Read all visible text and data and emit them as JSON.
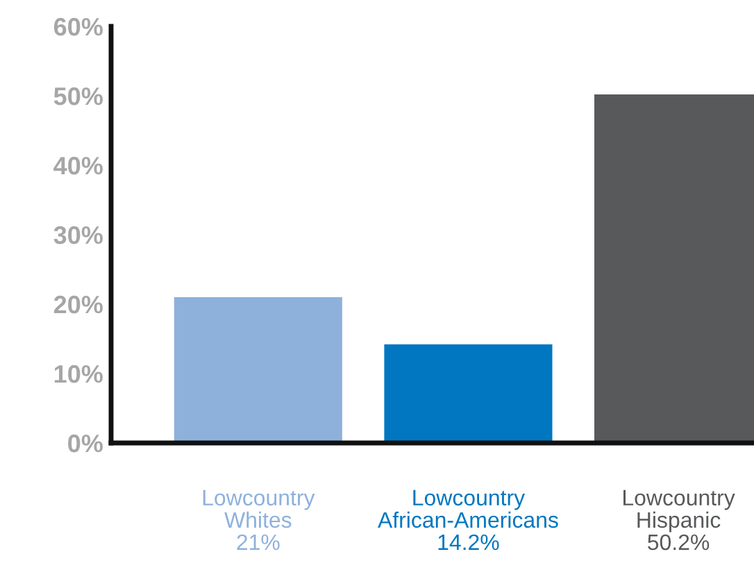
{
  "chart_data": {
    "type": "bar",
    "categories": [
      "Lowcountry\nWhites",
      "Lowcountry\nAfrican-Americans",
      "Lowcountry\nHispanic"
    ],
    "values": [
      21,
      14.2,
      50.2
    ],
    "colors": [
      "#8eb1dc",
      "#0077c0",
      "#58595b"
    ],
    "value_labels": [
      "21%",
      "14.2%",
      "50.2%"
    ],
    "ylim": [
      0,
      60
    ],
    "yticks": [
      {
        "value": 0,
        "label": "0%"
      },
      {
        "value": 10,
        "label": "10%"
      },
      {
        "value": 20,
        "label": "20%"
      },
      {
        "value": 30,
        "label": "30%"
      },
      {
        "value": 40,
        "label": "40%"
      },
      {
        "value": 50,
        "label": "50%"
      },
      {
        "value": 60,
        "label": "60%"
      }
    ],
    "grid": false,
    "legend": false
  }
}
